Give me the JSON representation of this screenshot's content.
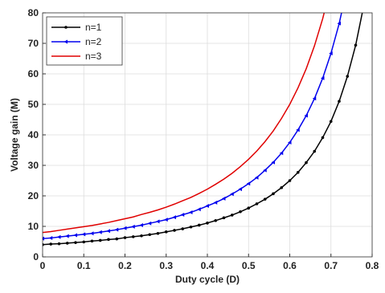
{
  "chart_data": {
    "type": "line",
    "xlabel": "Duty cycle (D)",
    "ylabel": "Voltage gain (M)",
    "x": [
      0,
      0.02,
      0.04,
      0.06,
      0.08,
      0.1,
      0.12,
      0.14,
      0.16,
      0.18,
      0.2,
      0.22,
      0.24,
      0.26,
      0.28,
      0.3,
      0.32,
      0.34,
      0.36,
      0.38,
      0.4,
      0.42,
      0.44,
      0.46,
      0.48,
      0.5,
      0.52,
      0.54,
      0.56,
      0.58,
      0.6,
      0.62,
      0.64,
      0.66,
      0.68,
      0.7,
      0.72,
      0.74,
      0.76,
      0.78
    ],
    "series": [
      {
        "name": "n=1",
        "color": "#000000",
        "marker": "circle",
        "values": [
          4,
          4.2,
          4.3,
          4.5,
          4.7,
          4.9,
          5.2,
          5.4,
          5.7,
          5.9,
          6.3,
          6.6,
          6.9,
          7.3,
          7.7,
          8.2,
          8.7,
          9.2,
          9.8,
          10.4,
          11.1,
          11.9,
          12.8,
          13.7,
          14.8,
          16,
          17.4,
          18.9,
          20.7,
          22.7,
          25,
          27.7,
          30.9,
          34.6,
          39.1,
          44.4,
          51.0,
          59.2,
          69.4,
          82.6
        ]
      },
      {
        "name": "n=2",
        "color": "#0000ee",
        "marker": "triangle-left",
        "values": [
          6,
          6.2,
          6.5,
          6.8,
          7.1,
          7.4,
          7.7,
          8.1,
          8.5,
          8.9,
          9.4,
          9.9,
          10.4,
          11.0,
          11.6,
          12.2,
          13.0,
          13.8,
          14.6,
          15.6,
          16.7,
          17.8,
          19.1,
          20.6,
          22.2,
          24,
          26.0,
          28.4,
          31.0,
          34.0,
          37.5,
          41.6,
          46.3,
          51.9,
          58.6,
          66.7,
          76.5,
          88.8,
          null,
          null
        ]
      },
      {
        "name": "n=3",
        "color": "#e00000",
        "marker": "none",
        "values": [
          8,
          8.3,
          8.7,
          9.1,
          9.5,
          9.9,
          10.3,
          10.8,
          11.3,
          11.9,
          12.5,
          13.1,
          13.9,
          14.6,
          15.4,
          16.3,
          17.3,
          18.4,
          19.5,
          20.8,
          22.2,
          23.8,
          25.5,
          27.4,
          29.6,
          32,
          34.7,
          37.8,
          41.3,
          45.4,
          50,
          55.4,
          61.7,
          69.2,
          78.1,
          88.9,
          null,
          null,
          null,
          null
        ]
      }
    ],
    "xlim": [
      0,
      0.8
    ],
    "xticks": [
      0,
      0.1,
      0.2,
      0.3,
      0.4,
      0.5,
      0.6,
      0.7,
      0.8
    ],
    "ylim": [
      0,
      80
    ],
    "yticks": [
      0,
      10,
      20,
      30,
      40,
      50,
      60,
      70,
      80
    ],
    "grid": true,
    "legend": "upper left"
  }
}
